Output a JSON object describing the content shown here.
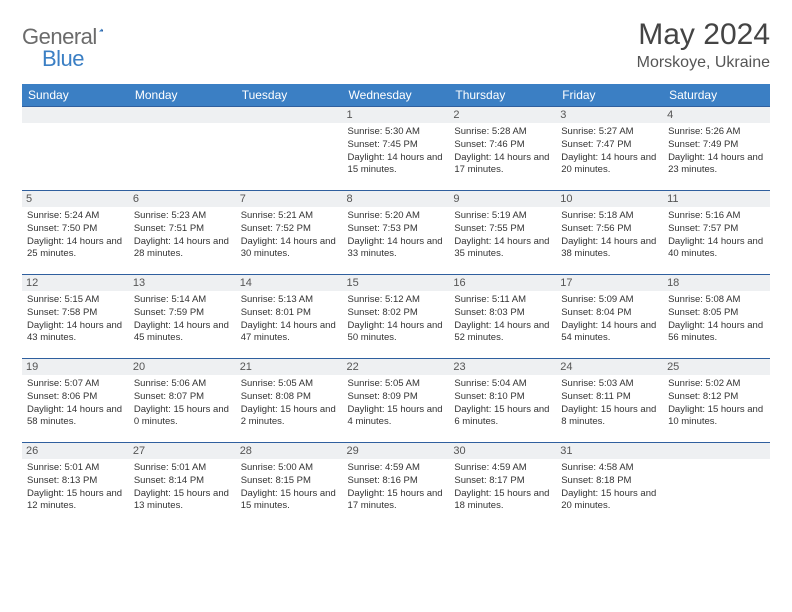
{
  "brand": {
    "part1": "General",
    "part2": "Blue"
  },
  "title": "May 2024",
  "location": "Morskoye, Ukraine",
  "colors": {
    "header_bg": "#3b7fc4",
    "week_border": "#2f5f9e",
    "daynum_bg": "#eef0f2",
    "text": "#333333",
    "title_text": "#444444"
  },
  "days_of_week": [
    "Sunday",
    "Monday",
    "Tuesday",
    "Wednesday",
    "Thursday",
    "Friday",
    "Saturday"
  ],
  "weeks": [
    [
      null,
      null,
      null,
      {
        "n": "1",
        "sr": "5:30 AM",
        "ss": "7:45 PM",
        "dl": "14 hours and 15 minutes."
      },
      {
        "n": "2",
        "sr": "5:28 AM",
        "ss": "7:46 PM",
        "dl": "14 hours and 17 minutes."
      },
      {
        "n": "3",
        "sr": "5:27 AM",
        "ss": "7:47 PM",
        "dl": "14 hours and 20 minutes."
      },
      {
        "n": "4",
        "sr": "5:26 AM",
        "ss": "7:49 PM",
        "dl": "14 hours and 23 minutes."
      }
    ],
    [
      {
        "n": "5",
        "sr": "5:24 AM",
        "ss": "7:50 PM",
        "dl": "14 hours and 25 minutes."
      },
      {
        "n": "6",
        "sr": "5:23 AM",
        "ss": "7:51 PM",
        "dl": "14 hours and 28 minutes."
      },
      {
        "n": "7",
        "sr": "5:21 AM",
        "ss": "7:52 PM",
        "dl": "14 hours and 30 minutes."
      },
      {
        "n": "8",
        "sr": "5:20 AM",
        "ss": "7:53 PM",
        "dl": "14 hours and 33 minutes."
      },
      {
        "n": "9",
        "sr": "5:19 AM",
        "ss": "7:55 PM",
        "dl": "14 hours and 35 minutes."
      },
      {
        "n": "10",
        "sr": "5:18 AM",
        "ss": "7:56 PM",
        "dl": "14 hours and 38 minutes."
      },
      {
        "n": "11",
        "sr": "5:16 AM",
        "ss": "7:57 PM",
        "dl": "14 hours and 40 minutes."
      }
    ],
    [
      {
        "n": "12",
        "sr": "5:15 AM",
        "ss": "7:58 PM",
        "dl": "14 hours and 43 minutes."
      },
      {
        "n": "13",
        "sr": "5:14 AM",
        "ss": "7:59 PM",
        "dl": "14 hours and 45 minutes."
      },
      {
        "n": "14",
        "sr": "5:13 AM",
        "ss": "8:01 PM",
        "dl": "14 hours and 47 minutes."
      },
      {
        "n": "15",
        "sr": "5:12 AM",
        "ss": "8:02 PM",
        "dl": "14 hours and 50 minutes."
      },
      {
        "n": "16",
        "sr": "5:11 AM",
        "ss": "8:03 PM",
        "dl": "14 hours and 52 minutes."
      },
      {
        "n": "17",
        "sr": "5:09 AM",
        "ss": "8:04 PM",
        "dl": "14 hours and 54 minutes."
      },
      {
        "n": "18",
        "sr": "5:08 AM",
        "ss": "8:05 PM",
        "dl": "14 hours and 56 minutes."
      }
    ],
    [
      {
        "n": "19",
        "sr": "5:07 AM",
        "ss": "8:06 PM",
        "dl": "14 hours and 58 minutes."
      },
      {
        "n": "20",
        "sr": "5:06 AM",
        "ss": "8:07 PM",
        "dl": "15 hours and 0 minutes."
      },
      {
        "n": "21",
        "sr": "5:05 AM",
        "ss": "8:08 PM",
        "dl": "15 hours and 2 minutes."
      },
      {
        "n": "22",
        "sr": "5:05 AM",
        "ss": "8:09 PM",
        "dl": "15 hours and 4 minutes."
      },
      {
        "n": "23",
        "sr": "5:04 AM",
        "ss": "8:10 PM",
        "dl": "15 hours and 6 minutes."
      },
      {
        "n": "24",
        "sr": "5:03 AM",
        "ss": "8:11 PM",
        "dl": "15 hours and 8 minutes."
      },
      {
        "n": "25",
        "sr": "5:02 AM",
        "ss": "8:12 PM",
        "dl": "15 hours and 10 minutes."
      }
    ],
    [
      {
        "n": "26",
        "sr": "5:01 AM",
        "ss": "8:13 PM",
        "dl": "15 hours and 12 minutes."
      },
      {
        "n": "27",
        "sr": "5:01 AM",
        "ss": "8:14 PM",
        "dl": "15 hours and 13 minutes."
      },
      {
        "n": "28",
        "sr": "5:00 AM",
        "ss": "8:15 PM",
        "dl": "15 hours and 15 minutes."
      },
      {
        "n": "29",
        "sr": "4:59 AM",
        "ss": "8:16 PM",
        "dl": "15 hours and 17 minutes."
      },
      {
        "n": "30",
        "sr": "4:59 AM",
        "ss": "8:17 PM",
        "dl": "15 hours and 18 minutes."
      },
      {
        "n": "31",
        "sr": "4:58 AM",
        "ss": "8:18 PM",
        "dl": "15 hours and 20 minutes."
      },
      null
    ]
  ],
  "labels": {
    "sunrise": "Sunrise:",
    "sunset": "Sunset:",
    "daylight": "Daylight:"
  }
}
